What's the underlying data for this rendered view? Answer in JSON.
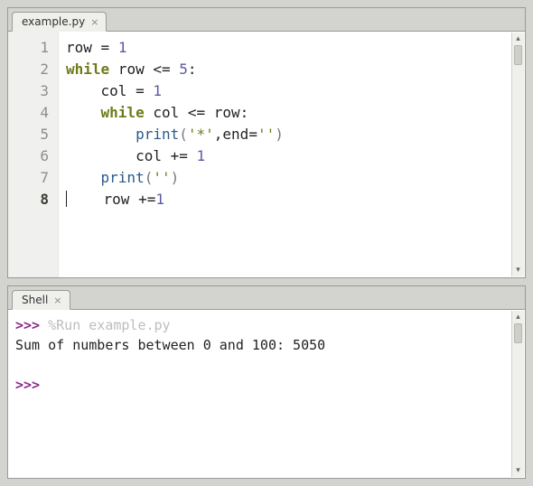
{
  "editor": {
    "tab_label": "example.py",
    "current_line": 8,
    "code": {
      "lines": [
        {
          "n": 1,
          "tokens": [
            {
              "t": "row ",
              "c": "op"
            },
            {
              "t": "=",
              "c": "op"
            },
            {
              "t": " ",
              "c": "op"
            },
            {
              "t": "1",
              "c": "num"
            }
          ]
        },
        {
          "n": 2,
          "tokens": [
            {
              "t": "while",
              "c": "kw"
            },
            {
              "t": " row ",
              "c": "op"
            },
            {
              "t": "<=",
              "c": "op"
            },
            {
              "t": " ",
              "c": "op"
            },
            {
              "t": "5",
              "c": "num"
            },
            {
              "t": ":",
              "c": "op"
            }
          ]
        },
        {
          "n": 3,
          "tokens": [
            {
              "t": "    col ",
              "c": "op"
            },
            {
              "t": "=",
              "c": "op"
            },
            {
              "t": " ",
              "c": "op"
            },
            {
              "t": "1",
              "c": "num"
            }
          ]
        },
        {
          "n": 4,
          "tokens": [
            {
              "t": "    ",
              "c": "op"
            },
            {
              "t": "while",
              "c": "kw"
            },
            {
              "t": " col ",
              "c": "op"
            },
            {
              "t": "<=",
              "c": "op"
            },
            {
              "t": " row:",
              "c": "op"
            }
          ]
        },
        {
          "n": 5,
          "tokens": [
            {
              "t": "        ",
              "c": "op"
            },
            {
              "t": "print",
              "c": "func"
            },
            {
              "t": "(",
              "c": "par"
            },
            {
              "t": "'*'",
              "c": "str"
            },
            {
              "t": ",end=",
              "c": "op"
            },
            {
              "t": "''",
              "c": "str"
            },
            {
              "t": ")",
              "c": "par"
            }
          ]
        },
        {
          "n": 6,
          "tokens": [
            {
              "t": "        col ",
              "c": "op"
            },
            {
              "t": "+=",
              "c": "op"
            },
            {
              "t": " ",
              "c": "op"
            },
            {
              "t": "1",
              "c": "num"
            }
          ]
        },
        {
          "n": 7,
          "tokens": [
            {
              "t": "    ",
              "c": "op"
            },
            {
              "t": "print",
              "c": "func"
            },
            {
              "t": "(",
              "c": "par"
            },
            {
              "t": "''",
              "c": "str"
            },
            {
              "t": ")",
              "c": "par"
            }
          ]
        },
        {
          "n": 8,
          "tokens": [
            {
              "t": "    row ",
              "c": "op"
            },
            {
              "t": "+=",
              "c": "op"
            },
            {
              "t": "1",
              "c": "num"
            }
          ]
        }
      ]
    },
    "colors": {
      "keyword": "#6f7a1a",
      "number": "#5a5aa3",
      "string": "#6f7a1a",
      "builtin": "#2a5a8a",
      "gutter_bg": "#f0f0ee",
      "gutter_fg": "#8e8e89",
      "panel_border": "#9a9a95",
      "app_bg": "#d3d3cf"
    }
  },
  "shell": {
    "tab_label": "Shell",
    "prompt": ">>>",
    "run_command": "%Run example.py",
    "output_lines": [
      " Sum of numbers between 0 and 100: 5050"
    ],
    "colors": {
      "prompt": "#8b2a8b",
      "runcmd": "#bdbdbd"
    }
  }
}
